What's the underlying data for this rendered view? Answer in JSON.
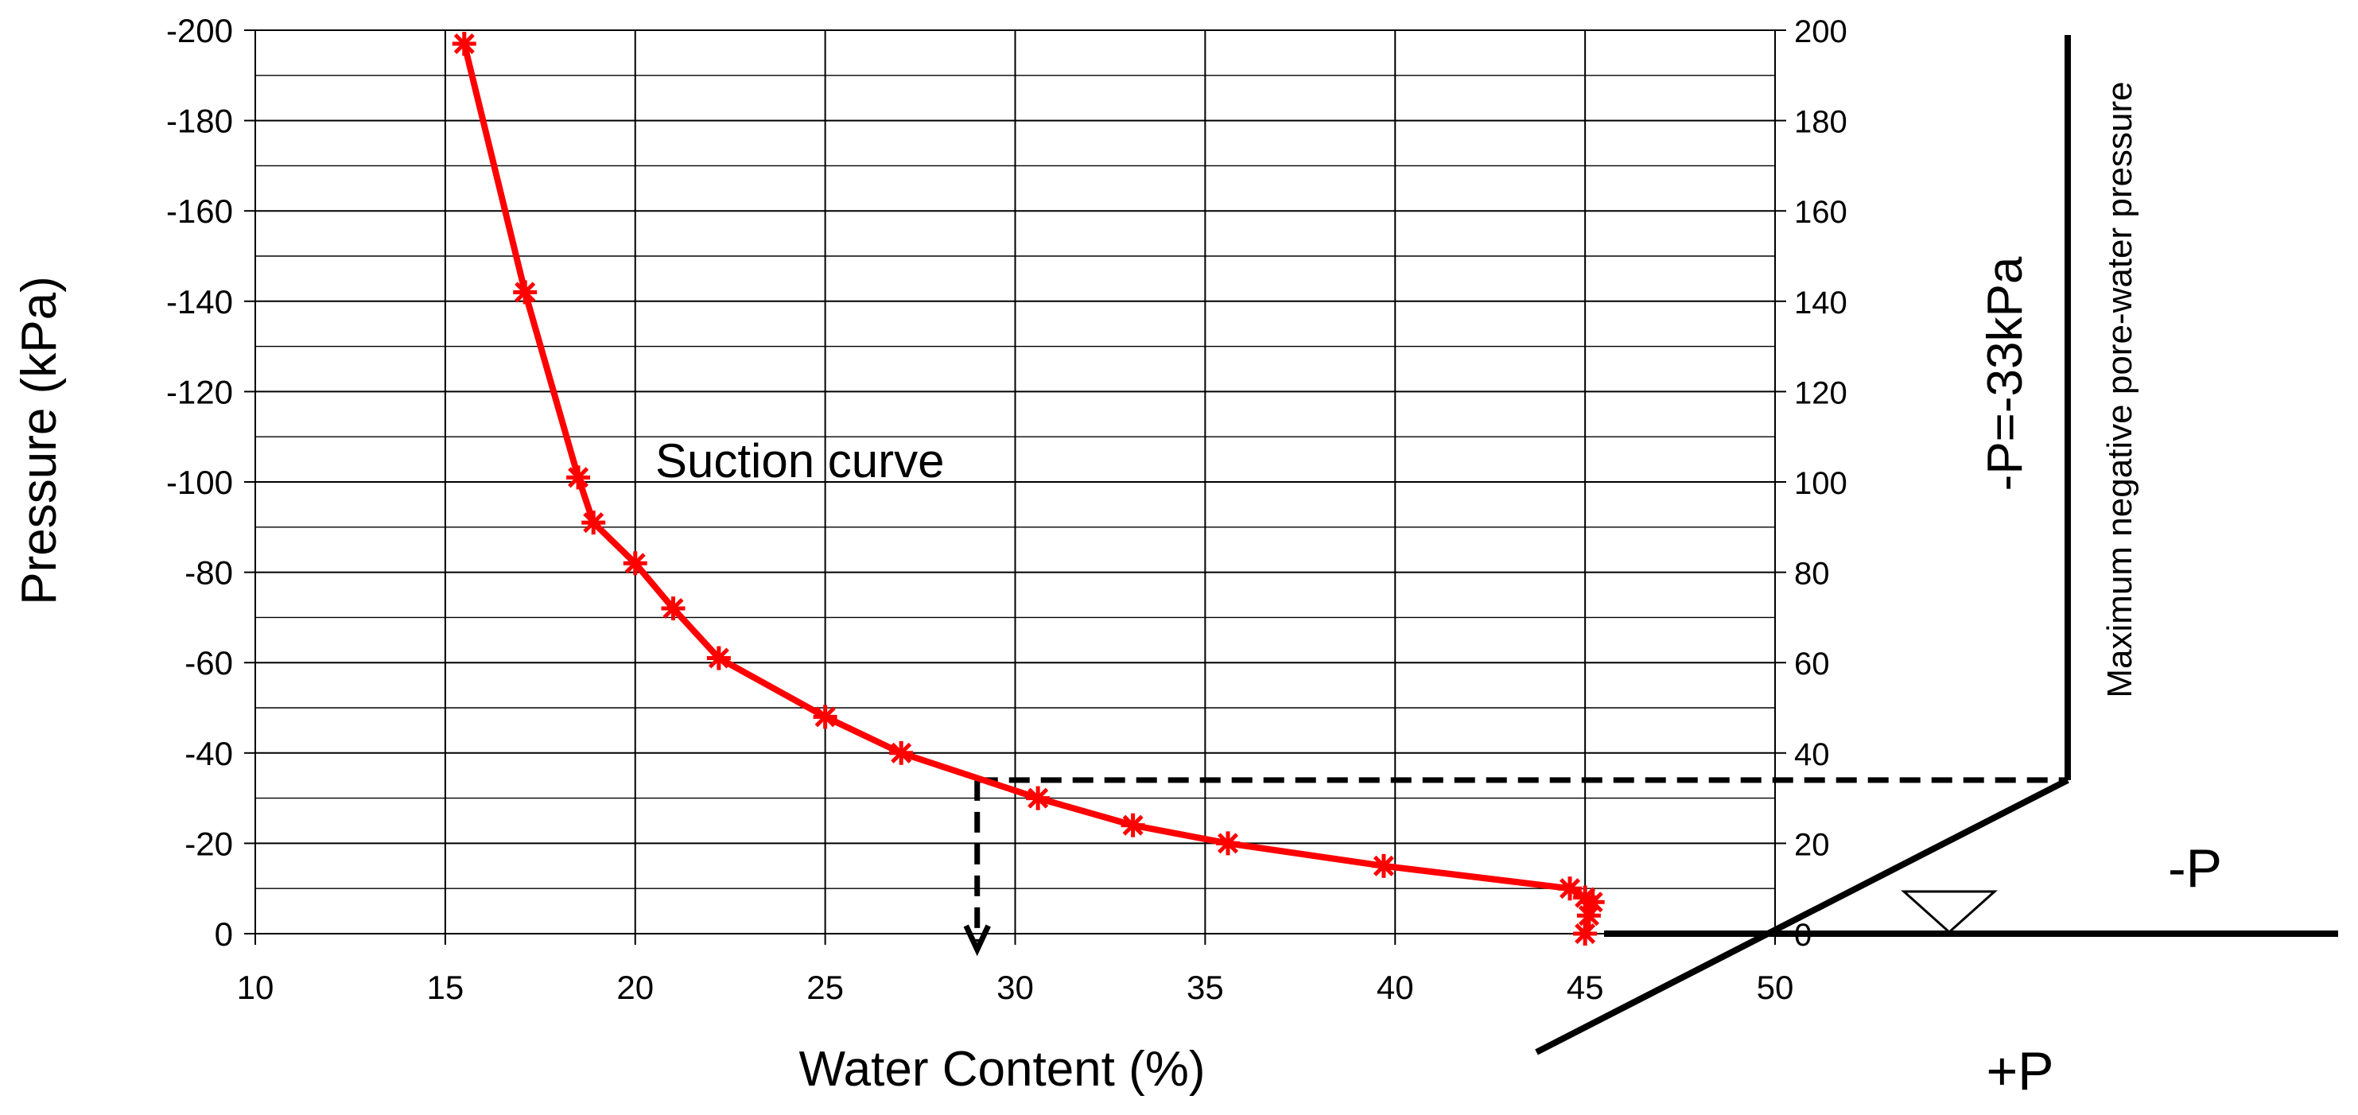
{
  "chart_data": {
    "type": "line",
    "title": "",
    "xlabel": "Water Content (%)",
    "ylabel": "Pressure (kPa)",
    "xlim": [
      10,
      50
    ],
    "ylim": [
      0,
      -200
    ],
    "x_ticks": [
      "10",
      "15",
      "20",
      "25",
      "30",
      "35",
      "40",
      "45",
      "50"
    ],
    "y_ticks_left": [
      "-200",
      "-180",
      "-160",
      "-140",
      "-120",
      "-100",
      "-80",
      "-60",
      "-40",
      "-20",
      "0"
    ],
    "y_ticks_right": [
      "200",
      "180",
      "160",
      "140",
      "120",
      "100",
      "80",
      "60",
      "40",
      "20",
      "0"
    ],
    "grid": true,
    "series": [
      {
        "name": "Suction curve",
        "color": "#ff0000",
        "x": [
          15.5,
          17.1,
          18.5,
          18.9,
          20.0,
          21.0,
          22.2,
          25.0,
          27.0,
          30.6,
          33.1,
          35.6,
          39.7,
          44.6,
          45.0,
          45.2,
          45.1,
          45.0
        ],
        "y": [
          -197,
          -142,
          -101,
          -91,
          -82,
          -72,
          -61,
          -48,
          -40,
          -30,
          -24,
          -20,
          -15,
          -10,
          -8,
          -7,
          -4,
          0
        ]
      }
    ],
    "annotations": {
      "curve_label": "Suction curve",
      "pressure_label": "-P=-33kPa",
      "vertical_axis_label": "Maximum negative pore-water pressure",
      "negative_label": "-P",
      "positive_label": "+P",
      "marker_water_content": 29,
      "marker_pressure": -34
    }
  }
}
